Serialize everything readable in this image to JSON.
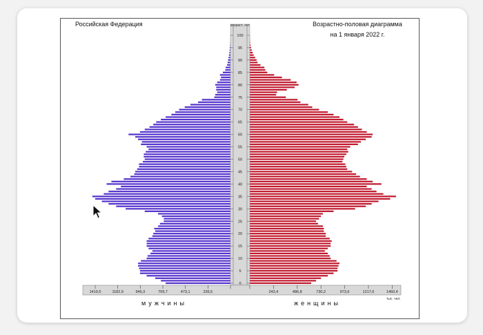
{
  "chart_data": {
    "type": "bar",
    "title_left": "Российская Федерация",
    "title_right_line1": "Возрастно-половая диаграмма",
    "title_right_line2": "на 1 января 2022 г.",
    "axis_label_top": "возраст, лет",
    "unit_label": "тыс. чел.",
    "xlabel_left": "мужчины",
    "xlabel_right": "женщины",
    "age_ticks": [
      "100",
      "95",
      "90",
      "85",
      "80",
      "75",
      "70",
      "65",
      "60",
      "55",
      "50",
      "45",
      "40",
      "35",
      "30",
      "25",
      "20",
      "15",
      "10",
      "5",
      "0"
    ],
    "x_ticks_left": [
      "1419,5",
      "1182,9",
      "946,3",
      "709,7",
      "473,1",
      "236,5"
    ],
    "x_ticks_right": [
      "243,4",
      "486,8",
      "730,2",
      "973,6",
      "1217,0",
      "1460,4"
    ],
    "xlim_left": 1550,
    "xlim_right": 1550,
    "colors": {
      "male": "#5533cc",
      "female": "#c0182d",
      "axis": "#d8d8d8"
    },
    "series": [
      {
        "name": "мужчины",
        "values": [
          680,
          730,
          790,
          880,
          950,
          950,
          960,
          970,
          970,
          940,
          880,
          870,
          840,
          820,
          860,
          880,
          880,
          880,
          860,
          820,
          810,
          790,
          800,
          760,
          740,
          700,
          700,
          720,
          760,
          900,
          1100,
          1200,
          1280,
          1350,
          1420,
          1450,
          1330,
          1280,
          1200,
          1150,
          1300,
          1250,
          1120,
          1050,
          1010,
          1000,
          980,
          960,
          960,
          920,
          900,
          910,
          910,
          890,
          860,
          880,
          940,
          930,
          970,
          1000,
          1070,
          950,
          900,
          850,
          810,
          780,
          730,
          680,
          620,
          580,
          540,
          480,
          420,
          340,
          300,
          170,
          160,
          140,
          150,
          150,
          160,
          140,
          110,
          100,
          110,
          80,
          55,
          50,
          35,
          30,
          25,
          20,
          16,
          12,
          9,
          7,
          5,
          3,
          2,
          1,
          1,
          0,
          0
        ]
      },
      {
        "name": "женщины",
        "values": [
          630,
          680,
          730,
          800,
          860,
          900,
          900,
          910,
          920,
          890,
          830,
          820,
          800,
          770,
          800,
          830,
          830,
          840,
          820,
          780,
          780,
          760,
          760,
          750,
          700,
          680,
          710,
          730,
          750,
          860,
          1080,
          1190,
          1250,
          1320,
          1440,
          1500,
          1370,
          1300,
          1250,
          1200,
          1350,
          1260,
          1200,
          1130,
          1090,
          1050,
          1000,
          990,
          980,
          950,
          960,
          970,
          990,
          1010,
          1000,
          1030,
          1110,
          1140,
          1190,
          1250,
          1260,
          1200,
          1150,
          1110,
          1070,
          1000,
          960,
          920,
          860,
          800,
          710,
          640,
          600,
          520,
          490,
          370,
          270,
          280,
          380,
          460,
          500,
          480,
          420,
          330,
          250,
          180,
          160,
          150,
          110,
          80,
          70,
          55,
          40,
          30,
          20,
          13,
          8,
          5,
          3,
          2,
          1
        ]
      }
    ]
  }
}
